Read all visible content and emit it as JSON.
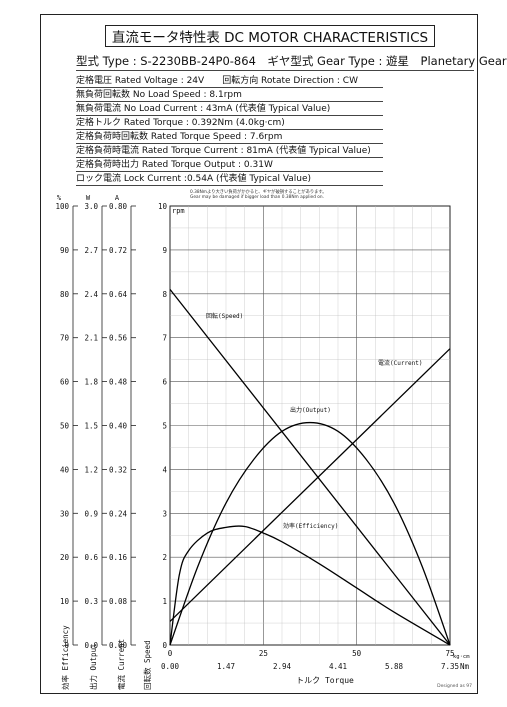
{
  "title": "直流モータ特性表 DC MOTOR CHARACTERISTICS",
  "specs": {
    "type_line": "型式 Type : S-2230BB-24P0-864　ギヤ型式 Gear Type : 遊星　Planetary Gear",
    "rated_voltage": "定格電圧 Rated Voltage : 24V　　回転方向 Rotate Direction : CW",
    "no_load_speed": "無負荷回転数 No Load Speed : 8.1rpm",
    "no_load_current": "無負荷電流 No Load Current : 43mA (代表値 Typical Value)",
    "rated_torque": "定格トルク Rated Torque : 0.392Nm (4.0kg·cm)",
    "rated_torque_speed": "定格負荷時回転数 Rated Torque Speed : 7.6rpm",
    "rated_torque_current": "定格負荷時電流 Rated Torque Current : 81mA (代表値 Typical Value)",
    "rated_torque_output": "定格負荷時出力 Rated Torque Output : 0.31W",
    "lock_current": "ロック電流 Lock Current :0.54A (代表値 Typical Value)"
  },
  "warning": {
    "line1": "0.38Nmより大きい負荷がかかると、ギヤが破損することがあります。",
    "line2": "Gear may be damaged if bigger load than 0.38Nm applied on."
  },
  "designed_by": "Designed as 97",
  "chart_data": {
    "type": "line",
    "xlabel": "トルク Torque",
    "x_units": [
      "kg·cm",
      "Nm"
    ],
    "x_kgcm": {
      "range": [
        0,
        75
      ],
      "ticks": [
        0,
        25,
        50,
        75
      ]
    },
    "x_nm": {
      "range": [
        0,
        7.35
      ],
      "ticks": [
        "0.00",
        "1.47",
        "2.94",
        "4.41",
        "5.88",
        "7.35"
      ]
    },
    "y_axes": [
      {
        "unit": "%",
        "label": "効率 Efficiency",
        "range": [
          0,
          100
        ],
        "ticks": [
          "0",
          "10",
          "20",
          "30",
          "40",
          "50",
          "60",
          "70",
          "80",
          "90",
          "100"
        ]
      },
      {
        "unit": "W",
        "label": "出力 Output",
        "range": [
          0,
          3
        ],
        "ticks": [
          "0.0",
          "0.3",
          "0.6",
          "0.9",
          "1.2",
          "1.5",
          "1.8",
          "2.1",
          "2.4",
          "2.7",
          "3.0"
        ]
      },
      {
        "unit": "A",
        "label": "電流 Current",
        "range": [
          0,
          0.8
        ],
        "ticks": [
          "0.00",
          "0.08",
          "0.16",
          "0.24",
          "0.32",
          "0.40",
          "0.48",
          "0.56",
          "0.64",
          "0.72",
          "0.80"
        ]
      },
      {
        "unit": "rpm",
        "label": "回転数 Speed",
        "range": [
          0,
          10
        ],
        "ticks": [
          "0",
          "1",
          "2",
          "3",
          "4",
          "5",
          "6",
          "7",
          "8",
          "9",
          "10"
        ]
      }
    ],
    "grid": true,
    "series": [
      {
        "name": "回転(Speed)",
        "axis": "rpm",
        "x_kgcm": [
          0,
          75
        ],
        "y": [
          8.1,
          0
        ]
      },
      {
        "name": "電流(Current)",
        "axis": "A",
        "x_kgcm": [
          0,
          75
        ],
        "y": [
          0.043,
          0.54
        ]
      },
      {
        "name": "出力(Output)",
        "axis": "W",
        "x_kgcm": [
          0,
          7.5,
          15,
          22.5,
          30,
          37.5,
          45,
          52.5,
          60,
          67.5,
          75
        ],
        "y": [
          0,
          0.54,
          0.97,
          1.27,
          1.46,
          1.52,
          1.46,
          1.27,
          0.97,
          0.54,
          0
        ]
      },
      {
        "name": "効率(Efficiency)",
        "axis": "%",
        "x_kgcm": [
          0,
          2.5,
          5,
          10,
          15,
          20,
          25,
          30,
          40,
          50,
          60,
          75
        ],
        "y": [
          0,
          16,
          21.5,
          25.5,
          26.8,
          27,
          25.5,
          23.5,
          18.5,
          13,
          7.5,
          0
        ]
      }
    ]
  }
}
